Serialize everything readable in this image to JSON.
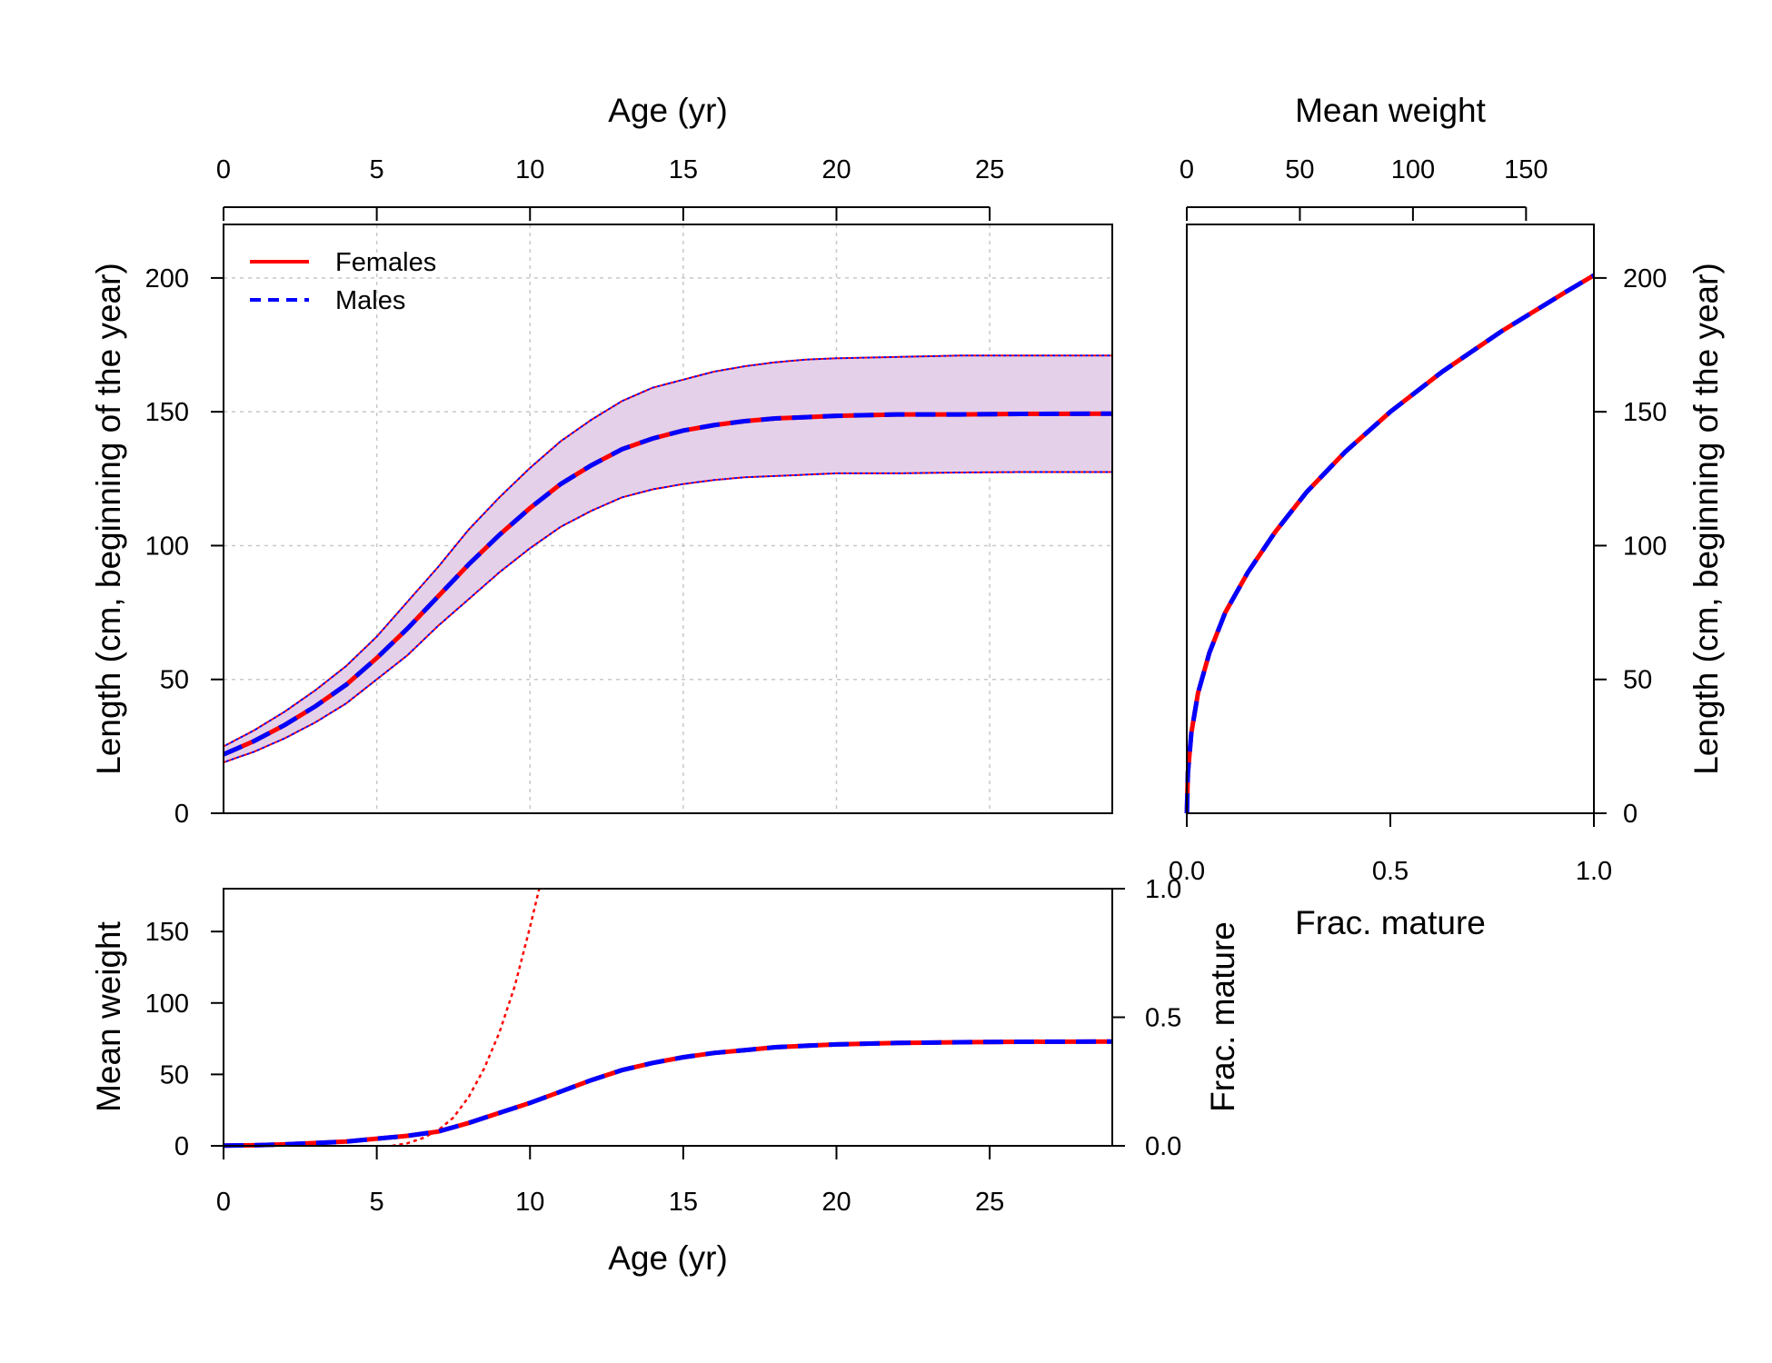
{
  "colors": {
    "females": "#ff0000",
    "males": "#0000ff",
    "band_fill": "#e4d0e8",
    "grid": "#c8c8c8",
    "frame": "#000000"
  },
  "chart_data": [
    {
      "id": "length_at_age",
      "type": "line",
      "title": "",
      "xlabel": "Age (yr)",
      "ylabel": "Length (cm, beginning of the year)",
      "xlim": [
        0,
        29
      ],
      "ylim": [
        0,
        220
      ],
      "x_ticks": [
        0,
        5,
        10,
        15,
        20,
        25
      ],
      "y_ticks": [
        0,
        50,
        100,
        150,
        200
      ],
      "x_axis_side": "top",
      "grid": true,
      "legend": {
        "position": "top-left",
        "entries": [
          {
            "label": "Females",
            "color": "#ff0000",
            "style": "solid"
          },
          {
            "label": "Males",
            "color": "#0000ff",
            "style": "dashed"
          }
        ]
      },
      "x": [
        0,
        1,
        2,
        3,
        4,
        5,
        6,
        7,
        8,
        9,
        10,
        11,
        12,
        13,
        14,
        15,
        16,
        17,
        18,
        19,
        20,
        22,
        24,
        26,
        29
      ],
      "series": [
        {
          "name": "Females",
          "values": [
            22,
            27,
            33,
            40,
            48,
            58,
            69,
            81,
            93,
            104,
            114,
            123,
            130,
            136,
            140,
            143,
            145,
            146.5,
            147.5,
            148,
            148.5,
            149,
            149,
            149.2,
            149.3
          ]
        },
        {
          "name": "Males",
          "values": [
            22,
            27,
            33,
            40,
            48,
            58,
            69,
            81,
            93,
            104,
            114,
            123,
            130,
            136,
            140,
            143,
            145,
            146.5,
            147.5,
            148,
            148.5,
            149,
            149,
            149.2,
            149.3
          ]
        }
      ],
      "band": {
        "upper": [
          25,
          31,
          38,
          46,
          55,
          66,
          79,
          92,
          106,
          118,
          129,
          139,
          147,
          154,
          159,
          162,
          165,
          167,
          168.5,
          169.5,
          170,
          170.5,
          171,
          171,
          171
        ],
        "lower": [
          19,
          23,
          28,
          34,
          41,
          50,
          59,
          70,
          80,
          90,
          99,
          107,
          113,
          118,
          121,
          123,
          124.5,
          125.5,
          126,
          126.5,
          127,
          127,
          127.3,
          127.5,
          127.5
        ]
      }
    },
    {
      "id": "length_weight_maturity",
      "type": "line",
      "title": "",
      "top_xlabel": "Mean weight",
      "top_xlim": [
        0,
        180
      ],
      "top_x_ticks": [
        0,
        50,
        100,
        150
      ],
      "bottom_xlabel": "Frac. mature",
      "bottom_xlim": [
        0,
        1
      ],
      "bottom_x_ticks": [
        "0.0",
        "0.5",
        "1.0"
      ],
      "ylabel": "Length (cm, beginning of the year)",
      "ylim": [
        0,
        220
      ],
      "y_ticks": [
        0,
        50,
        100,
        150,
        200
      ],
      "y_axis_side": "right",
      "series": [
        {
          "name": "Females",
          "weight": [
            0.05,
            0.5,
            2,
            5,
            10,
            17,
            27,
            39,
            53,
            70,
            90,
            113,
            139,
            168,
            180
          ],
          "length": [
            0,
            15,
            30,
            45,
            60,
            75,
            90,
            105,
            120,
            135,
            150,
            165,
            180,
            195,
            201
          ]
        },
        {
          "name": "Males",
          "weight": [
            0.05,
            0.5,
            2,
            5,
            10,
            17,
            27,
            39,
            53,
            70,
            90,
            113,
            139,
            168,
            180
          ],
          "length": [
            0,
            15,
            30,
            45,
            60,
            75,
            90,
            105,
            120,
            135,
            150,
            165,
            180,
            195,
            201
          ]
        }
      ]
    },
    {
      "id": "weight_maturity_at_age",
      "type": "line",
      "title": "",
      "xlabel": "Age (yr)",
      "xlim": [
        0,
        29
      ],
      "x_ticks": [
        0,
        5,
        10,
        15,
        20,
        25
      ],
      "ylabel": "Mean weight",
      "ylim": [
        0,
        180
      ],
      "y_ticks": [
        0,
        50,
        100,
        150
      ],
      "y2label": "Frac. mature",
      "y2lim": [
        0,
        1
      ],
      "y2_ticks": [
        "0.0",
        "0.5",
        "1.0"
      ],
      "x": [
        0,
        1,
        2,
        3,
        4,
        5,
        6,
        7,
        8,
        9,
        10,
        11,
        12,
        13,
        14,
        15,
        16,
        17,
        18,
        19,
        20,
        22,
        24,
        26,
        29
      ],
      "series": [
        {
          "name": "Females",
          "values": [
            0.2,
            0.4,
            1,
            2,
            3,
            5,
            7,
            10,
            16,
            23,
            30,
            38,
            46,
            53,
            58,
            62,
            65,
            67,
            69,
            70,
            71,
            72,
            72.5,
            72.8,
            73
          ]
        },
        {
          "name": "Males",
          "values": [
            0.2,
            0.4,
            1,
            2,
            3,
            5,
            7,
            10,
            16,
            23,
            30,
            38,
            46,
            53,
            58,
            62,
            65,
            67,
            69,
            70,
            71,
            72,
            72.5,
            72.8,
            73
          ]
        }
      ],
      "maturity": {
        "name": "Females",
        "x": [
          5.5,
          6,
          6.5,
          7,
          7.5,
          8,
          8.5,
          9,
          9.5,
          10,
          10.3
        ],
        "values": [
          0,
          0.01,
          0.03,
          0.06,
          0.11,
          0.19,
          0.3,
          0.44,
          0.62,
          0.85,
          1.0
        ]
      }
    }
  ]
}
